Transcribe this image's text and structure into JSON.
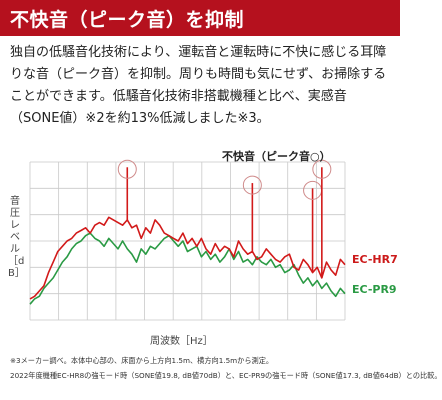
{
  "header": {
    "title": "不快音（ピーク音）を抑制"
  },
  "description": "独自の低騒音化技術により、運転音と運転時に不快に感じる耳障りな音（ピーク音）を抑制。周りも時間も気にせず、お掃除することができます。低騒音化技術非搭載機種と比べ、実感音（SONE値）※2を約13%低減しました※3。",
  "chart": {
    "ylabel": "音圧レベル［dB］",
    "xlabel": "周波数［Hz］",
    "peak_legend": "不快音（ピーク音○）",
    "series_red_label": "EC-HR7",
    "series_green_label": "EC-PR9",
    "colors": {
      "red": "#d21a1a",
      "green": "#2a9a44",
      "grid": "#c9c9c9",
      "circle": "#cf8a8a"
    }
  },
  "footnotes": {
    "line1": "※3メーカー調べ。本体中心部の、床面から上方向1.5m、横方向1.5mから測定。",
    "line2": "2022年度機種EC-HR8の強モード時（SONE値19.8, dB値70dB）と、EC-PR9の強モード時（SONE値17.3, dB値64dB）との比較。"
  },
  "chart_data": {
    "type": "line",
    "title": "不快音（ピーク音○）",
    "xlabel": "周波数［Hz］",
    "ylabel": "音圧レベル［dB］",
    "grid": true,
    "legend": "right",
    "series": [
      {
        "name": "EC-HR7",
        "values": [
          8,
          9,
          11,
          13,
          18,
          22,
          26,
          28,
          30,
          31,
          33,
          34,
          35,
          33,
          36,
          37,
          36,
          39,
          38,
          37,
          36,
          38,
          35,
          36,
          31,
          35,
          33,
          38,
          36,
          33,
          32,
          31,
          30,
          33,
          29,
          31,
          28,
          31,
          27,
          25,
          29,
          26,
          28,
          27,
          24,
          30,
          27,
          25,
          26,
          23,
          24,
          27,
          25,
          23,
          22,
          24,
          25,
          20,
          19,
          23,
          21,
          18,
          20,
          16,
          22,
          19,
          17,
          23,
          21
        ]
      },
      {
        "name": "EC-PR9",
        "values": [
          6,
          8,
          9,
          12,
          14,
          16,
          19,
          22,
          24,
          27,
          29,
          30,
          32,
          33,
          31,
          30,
          28,
          31,
          29,
          27,
          30,
          27,
          25,
          22,
          27,
          25,
          28,
          27,
          29,
          31,
          32,
          30,
          28,
          30,
          26,
          27,
          28,
          24,
          26,
          23,
          25,
          22,
          24,
          27,
          23,
          26,
          22,
          23,
          21,
          24,
          22,
          21,
          23,
          20,
          21,
          18,
          19,
          21,
          17,
          14,
          16,
          13,
          15,
          12,
          14,
          11,
          9,
          12,
          10
        ]
      }
    ]
  }
}
